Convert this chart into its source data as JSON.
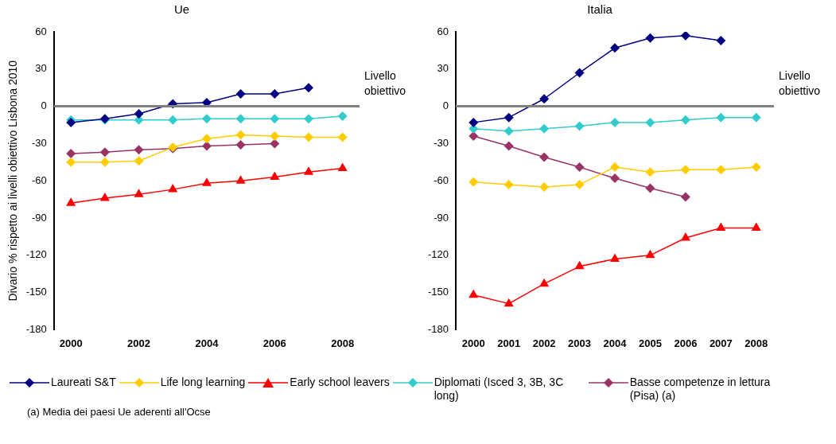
{
  "chart_data": [
    {
      "type": "line",
      "title": "Ue",
      "ylabel": "Divario % rispetto ai livelli obiettivo Lisbona 2010",
      "categories": [
        "2000",
        null,
        "2002",
        null,
        "2004",
        null,
        "2006",
        null,
        "2008"
      ],
      "series": [
        {
          "name": "Laureati S&T",
          "color": "#000080",
          "marker": "diamond",
          "values": [
            -13,
            -10,
            -6,
            2,
            3,
            10,
            10,
            15,
            null
          ]
        },
        {
          "name": "Life long learning",
          "color": "#ffcc00",
          "marker": "diamond",
          "values": [
            -45,
            -45,
            -44,
            -33,
            -26,
            -23,
            -24,
            -25,
            -25
          ]
        },
        {
          "name": "Early school leavers",
          "color": "#ff0000",
          "marker": "triangle",
          "values": [
            -78,
            -74,
            -71,
            -67,
            -62,
            -60,
            -57,
            -53,
            -50
          ]
        },
        {
          "name": "Diplomati (Isced 3, 3B, 3C long)",
          "color": "#33cccc",
          "marker": "diamond",
          "values": [
            -11,
            -11,
            -11,
            -11,
            -10,
            -10,
            -10,
            -10,
            -8
          ]
        },
        {
          "name": "Basse competenze in lettura (Pisa) (a)",
          "color": "#993366",
          "marker": "diamond",
          "values": [
            -38,
            -37,
            -35,
            -34,
            -32,
            -31,
            -30,
            null,
            null
          ]
        }
      ],
      "ylim": [
        -180,
        60
      ],
      "yticks": [
        -180,
        -150,
        -120,
        -90,
        -60,
        -30,
        0,
        30,
        60
      ],
      "grid": false,
      "legend": "bottom",
      "ref_lines": [
        {
          "axis": "y",
          "value": 0,
          "label": "Livello obiettivo",
          "color": "#808080"
        }
      ],
      "annotations": [
        "(a) Media dei paesi Ue aderenti all'Ocse"
      ]
    },
    {
      "type": "line",
      "title": "Italia",
      "categories": [
        "2000",
        "2001",
        "2002",
        "2003",
        "2004",
        "2005",
        "2006",
        "2007",
        "2008"
      ],
      "series": [
        {
          "color": "#000080",
          "marker": "diamond",
          "values": [
            -13,
            -9,
            6,
            27,
            47,
            55,
            57,
            53,
            null
          ]
        },
        {
          "color": "#ffcc00",
          "marker": "diamond",
          "values": [
            -61,
            -63,
            -65,
            -63,
            -49,
            -53,
            -51,
            -51,
            -49
          ]
        },
        {
          "color": "#ff0000",
          "marker": "triangle",
          "values": [
            -152,
            -159,
            -143,
            -129,
            -123,
            -120,
            -106,
            -98,
            -98
          ]
        },
        {
          "color": "#33cccc",
          "marker": "diamond",
          "values": [
            -18,
            -20,
            -18,
            -16,
            -13,
            -13,
            -11,
            -9,
            -9
          ]
        },
        {
          "color": "#993366",
          "marker": "diamond",
          "values": [
            -24,
            -32,
            -41,
            -49,
            -58,
            -66,
            -73,
            null,
            null
          ]
        }
      ],
      "ylim": [
        -180,
        60
      ],
      "yticks": [
        -180,
        -150,
        -120,
        -90,
        -60,
        -30,
        0,
        30,
        60
      ],
      "grid": false,
      "ref_lines": [
        {
          "axis": "y",
          "value": 0,
          "label": "Livello obiettivo",
          "color": "#808080"
        }
      ]
    }
  ]
}
